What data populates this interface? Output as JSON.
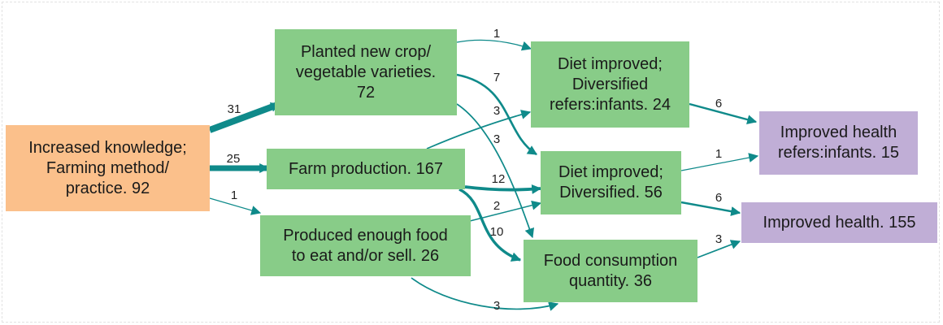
{
  "nodes": {
    "increased_knowledge": "Increased knowledge;\nFarming method/\npractice. 92",
    "planted_new_crop": "Planted new crop/\nvegetable varieties.\n72",
    "farm_production": "Farm production. 167",
    "produced_enough_food": "Produced enough food\nto eat and/or sell. 26",
    "diet_improved_infants": "Diet improved;\nDiversified\nrefers:infants. 24",
    "diet_improved": "Diet improved;\nDiversified. 56",
    "food_consumption": "Food consumption\nquantity. 36",
    "improved_health_infants": "Improved health\nrefers:infants. 15",
    "improved_health": "Improved health. 155"
  },
  "edges": [
    {
      "from": "increased_knowledge",
      "to": "planted_new_crop",
      "count": 31
    },
    {
      "from": "increased_knowledge",
      "to": "farm_production",
      "count": 25
    },
    {
      "from": "increased_knowledge",
      "to": "produced_enough_food",
      "count": 1
    },
    {
      "from": "planted_new_crop",
      "to": "diet_improved_infants",
      "count": 1
    },
    {
      "from": "planted_new_crop",
      "to": "diet_improved",
      "count": 7
    },
    {
      "from": "planted_new_crop",
      "to": "food_consumption",
      "count": 3
    },
    {
      "from": "farm_production",
      "to": "diet_improved_infants",
      "count": 3
    },
    {
      "from": "farm_production",
      "to": "diet_improved",
      "count": 12
    },
    {
      "from": "farm_production",
      "to": "food_consumption",
      "count": 10
    },
    {
      "from": "produced_enough_food",
      "to": "diet_improved",
      "count": 2
    },
    {
      "from": "produced_enough_food",
      "to": "food_consumption",
      "count": 3
    },
    {
      "from": "diet_improved_infants",
      "to": "improved_health_infants",
      "count": 6
    },
    {
      "from": "diet_improved",
      "to": "improved_health_infants",
      "count": 1
    },
    {
      "from": "diet_improved",
      "to": "improved_health",
      "count": 6
    },
    {
      "from": "food_consumption",
      "to": "improved_health",
      "count": 3
    }
  ],
  "colors": {
    "source_node": "#fbc08b",
    "intermediate_node": "#88cc88",
    "outcome_node": "#c0aed6",
    "edge": "#0f8a8a"
  }
}
